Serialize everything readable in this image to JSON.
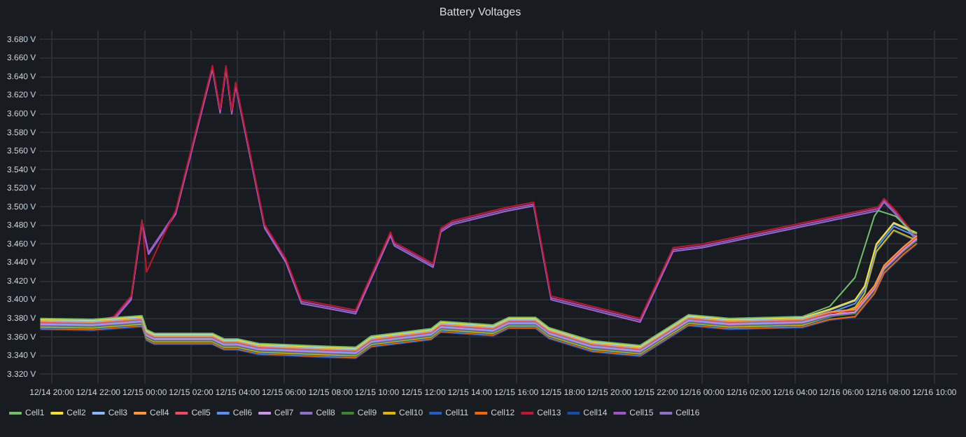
{
  "chart_data": {
    "type": "line",
    "title": "Battery Voltages",
    "legend": "bottom left",
    "grid": true,
    "xlim": [
      "--12-14T19:30",
      "--12-16T11:00"
    ],
    "xticks": [
      {
        "value": "--12-14T20:00",
        "label": "12/14 20:00"
      },
      {
        "value": "--12-14T22:00",
        "label": "12/14 22:00"
      },
      {
        "value": "--12-15T00:00",
        "label": "12/15 00:00"
      },
      {
        "value": "--12-15T02:00",
        "label": "12/15 02:00"
      },
      {
        "value": "--12-15T04:00",
        "label": "12/15 04:00"
      },
      {
        "value": "--12-15T06:00",
        "label": "12/15 06:00"
      },
      {
        "value": "--12-15T08:00",
        "label": "12/15 08:00"
      },
      {
        "value": "--12-15T10:00",
        "label": "12/15 10:00"
      },
      {
        "value": "--12-15T12:00",
        "label": "12/15 12:00"
      },
      {
        "value": "--12-15T14:00",
        "label": "12/15 14:00"
      },
      {
        "value": "--12-15T16:00",
        "label": "12/15 16:00"
      },
      {
        "value": "--12-15T18:00",
        "label": "12/15 18:00"
      },
      {
        "value": "--12-15T20:00",
        "label": "12/15 20:00"
      },
      {
        "value": "--12-15T22:00",
        "label": "12/15 22:00"
      },
      {
        "value": "--12-16T00:00",
        "label": "12/16 00:00"
      },
      {
        "value": "--12-16T02:00",
        "label": "12/16 02:00"
      },
      {
        "value": "--12-16T04:00",
        "label": "12/16 04:00"
      },
      {
        "value": "--12-16T06:00",
        "label": "12/16 06:00"
      },
      {
        "value": "--12-16T08:00",
        "label": "12/16 08:00"
      },
      {
        "value": "--12-16T10:00",
        "label": "12/16 10:00"
      }
    ],
    "ylim": [
      3.31,
      3.69
    ],
    "yticks": [
      {
        "value": 3.32,
        "label": "3.320 V"
      },
      {
        "value": 3.34,
        "label": "3.340 V"
      },
      {
        "value": 3.36,
        "label": "3.360 V"
      },
      {
        "value": 3.38,
        "label": "3.380 V"
      },
      {
        "value": 3.4,
        "label": "3.400 V"
      },
      {
        "value": 3.42,
        "label": "3.420 V"
      },
      {
        "value": 3.44,
        "label": "3.440 V"
      },
      {
        "value": 3.46,
        "label": "3.460 V"
      },
      {
        "value": 3.48,
        "label": "3.480 V"
      },
      {
        "value": 3.5,
        "label": "3.500 V"
      },
      {
        "value": 3.52,
        "label": "3.520 V"
      },
      {
        "value": 3.54,
        "label": "3.540 V"
      },
      {
        "value": 3.56,
        "label": "3.560 V"
      },
      {
        "value": 3.58,
        "label": "3.580 V"
      },
      {
        "value": 3.6,
        "label": "3.600 V"
      },
      {
        "value": 3.62,
        "label": "3.620 V"
      },
      {
        "value": 3.64,
        "label": "3.640 V"
      },
      {
        "value": 3.66,
        "label": "3.660 V"
      },
      {
        "value": 3.68,
        "label": "3.680 V"
      }
    ],
    "series": [
      {
        "name": "Cell1",
        "color": "#73bf69",
        "x": [
          "--12-14T19:30",
          "--12-14T21:45",
          "--12-14T23:53",
          "--12-15T00:05",
          "--12-15T00:25",
          "--12-15T02:55",
          "--12-15T03:25",
          "--12-15T04:00",
          "--12-15T04:55",
          "--12-15T07:50",
          "--12-15T09:05",
          "--12-15T09:45",
          "--12-15T12:20",
          "--12-15T12:45",
          "--12-15T15:00",
          "--12-15T15:40",
          "--12-15T16:50",
          "--12-15T17:25",
          "--12-15T19:15",
          "--12-15T21:20",
          "--12-15T23:25",
          "--12-16T01:10",
          "--12-16T04:20",
          "--12-16T05:30",
          "--12-16T06:35",
          "--12-16T07:25",
          "--12-16T07:35",
          "--12-16T08:20",
          "--12-16T09:05",
          "--12-16T09:15"
        ],
        "values": [
          3.38,
          3.379,
          3.383,
          3.368,
          3.364,
          3.364,
          3.358,
          3.358,
          3.353,
          3.35,
          3.349,
          3.361,
          3.369,
          3.377,
          3.373,
          3.381,
          3.381,
          3.37,
          3.356,
          3.351,
          3.384,
          3.38,
          3.382,
          3.393,
          3.424,
          3.49,
          3.496,
          3.49,
          3.472,
          3.472
        ]
      },
      {
        "name": "Cell2",
        "color": "#fade2a",
        "x": [
          "--12-14T19:30",
          "--12-14T21:45",
          "--12-14T23:53",
          "--12-15T00:05",
          "--12-15T00:25",
          "--12-15T02:55",
          "--12-15T03:25",
          "--12-15T04:00",
          "--12-15T04:55",
          "--12-15T07:50",
          "--12-15T09:05",
          "--12-15T09:45",
          "--12-15T12:20",
          "--12-15T12:45",
          "--12-15T15:00",
          "--12-15T15:40",
          "--12-15T16:50",
          "--12-15T17:25",
          "--12-15T19:15",
          "--12-15T21:20",
          "--12-15T23:25",
          "--12-16T01:10",
          "--12-16T04:20",
          "--12-16T05:30",
          "--12-16T06:35",
          "--12-16T07:00",
          "--12-16T07:30",
          "--12-16T08:15",
          "--12-16T09:15"
        ],
        "values": [
          3.379,
          3.378,
          3.382,
          3.367,
          3.363,
          3.363,
          3.357,
          3.357,
          3.352,
          3.349,
          3.348,
          3.36,
          3.368,
          3.376,
          3.372,
          3.38,
          3.38,
          3.369,
          3.355,
          3.35,
          3.383,
          3.379,
          3.381,
          3.39,
          3.4,
          3.415,
          3.46,
          3.483,
          3.472
        ]
      },
      {
        "name": "Cell3",
        "color": "#8ab8ff",
        "x": [
          "--12-14T19:30",
          "--12-14T21:45",
          "--12-14T23:53",
          "--12-15T00:05",
          "--12-15T00:25",
          "--12-15T02:55",
          "--12-15T03:25",
          "--12-15T04:00",
          "--12-15T04:55",
          "--12-15T07:50",
          "--12-15T09:05",
          "--12-15T09:45",
          "--12-15T12:20",
          "--12-15T12:45",
          "--12-15T15:00",
          "--12-15T15:40",
          "--12-15T16:50",
          "--12-15T17:25",
          "--12-15T19:15",
          "--12-15T21:20",
          "--12-15T23:25",
          "--12-16T01:10",
          "--12-16T04:20",
          "--12-16T05:30",
          "--12-16T06:35",
          "--12-16T07:00",
          "--12-16T07:30",
          "--12-16T08:15",
          "--12-16T09:15"
        ],
        "values": [
          3.378,
          3.377,
          3.381,
          3.366,
          3.362,
          3.362,
          3.356,
          3.356,
          3.351,
          3.348,
          3.347,
          3.359,
          3.367,
          3.375,
          3.371,
          3.379,
          3.379,
          3.368,
          3.354,
          3.349,
          3.382,
          3.378,
          3.38,
          3.389,
          3.399,
          3.414,
          3.459,
          3.482,
          3.471
        ]
      },
      {
        "name": "Cell4",
        "color": "#ff9830",
        "x": [
          "--12-14T19:30",
          "--12-14T21:45",
          "--12-14T23:53",
          "--12-15T00:05",
          "--12-15T00:25",
          "--12-15T02:55",
          "--12-15T03:25",
          "--12-15T04:00",
          "--12-15T04:55",
          "--12-15T07:50",
          "--12-15T09:05",
          "--12-15T09:45",
          "--12-15T12:20",
          "--12-15T12:45",
          "--12-15T15:00",
          "--12-15T15:40",
          "--12-15T16:50",
          "--12-15T17:25",
          "--12-15T19:15",
          "--12-15T21:20",
          "--12-15T23:25",
          "--12-16T01:10",
          "--12-16T04:20",
          "--12-16T05:30",
          "--12-16T06:35",
          "--12-16T07:25",
          "--12-16T07:50",
          "--12-16T08:40",
          "--12-16T09:15"
        ],
        "values": [
          3.377,
          3.376,
          3.38,
          3.365,
          3.361,
          3.361,
          3.355,
          3.355,
          3.35,
          3.347,
          3.346,
          3.358,
          3.366,
          3.374,
          3.37,
          3.378,
          3.378,
          3.367,
          3.353,
          3.348,
          3.381,
          3.377,
          3.379,
          3.387,
          3.39,
          3.415,
          3.437,
          3.457,
          3.469
        ]
      },
      {
        "name": "Cell5",
        "color": "#f2495c",
        "x": [
          "--12-14T19:30",
          "--12-14T21:45",
          "--12-14T23:53",
          "--12-15T00:05",
          "--12-15T00:25",
          "--12-15T02:55",
          "--12-15T03:25",
          "--12-15T04:00",
          "--12-15T04:55",
          "--12-15T07:50",
          "--12-15T09:05",
          "--12-15T09:45",
          "--12-15T12:20",
          "--12-15T12:45",
          "--12-15T15:00",
          "--12-15T15:40",
          "--12-15T16:50",
          "--12-15T17:25",
          "--12-15T19:15",
          "--12-15T21:20",
          "--12-15T23:25",
          "--12-16T01:10",
          "--12-16T04:20",
          "--12-16T05:30",
          "--12-16T06:35",
          "--12-16T07:25",
          "--12-16T07:50",
          "--12-16T08:40",
          "--12-16T09:15"
        ],
        "values": [
          3.376,
          3.375,
          3.379,
          3.364,
          3.36,
          3.36,
          3.354,
          3.354,
          3.349,
          3.346,
          3.345,
          3.357,
          3.365,
          3.373,
          3.369,
          3.377,
          3.377,
          3.366,
          3.352,
          3.347,
          3.38,
          3.376,
          3.378,
          3.386,
          3.389,
          3.414,
          3.436,
          3.456,
          3.468
        ]
      },
      {
        "name": "Cell6",
        "color": "#5794f2",
        "x": [
          "--12-14T19:30",
          "--12-14T21:45",
          "--12-14T23:53",
          "--12-15T00:05",
          "--12-15T00:25",
          "--12-15T02:55",
          "--12-15T03:25",
          "--12-15T04:00",
          "--12-15T04:55",
          "--12-15T07:50",
          "--12-15T09:05",
          "--12-15T09:45",
          "--12-15T12:20",
          "--12-15T12:45",
          "--12-15T15:00",
          "--12-15T15:40",
          "--12-15T16:50",
          "--12-15T17:25",
          "--12-15T19:15",
          "--12-15T21:20",
          "--12-15T23:25",
          "--12-16T01:10",
          "--12-16T04:20",
          "--12-16T05:30",
          "--12-16T06:35",
          "--12-16T07:00",
          "--12-16T07:30",
          "--12-16T08:15",
          "--12-16T09:15"
        ],
        "values": [
          3.375,
          3.374,
          3.378,
          3.363,
          3.359,
          3.359,
          3.353,
          3.353,
          3.348,
          3.345,
          3.344,
          3.356,
          3.364,
          3.372,
          3.368,
          3.376,
          3.376,
          3.365,
          3.351,
          3.346,
          3.379,
          3.375,
          3.377,
          3.386,
          3.396,
          3.411,
          3.456,
          3.479,
          3.468
        ]
      },
      {
        "name": "Cell7",
        "color": "#ca95e5",
        "x": [
          "--12-14T19:30",
          "--12-14T21:45",
          "--12-14T23:53",
          "--12-15T00:05",
          "--12-15T00:25",
          "--12-15T02:55",
          "--12-15T03:25",
          "--12-15T04:00",
          "--12-15T04:55",
          "--12-15T07:50",
          "--12-15T09:05",
          "--12-15T09:45",
          "--12-15T12:20",
          "--12-15T12:45",
          "--12-15T15:00",
          "--12-15T15:40",
          "--12-15T16:50",
          "--12-15T17:25",
          "--12-15T19:15",
          "--12-15T21:20",
          "--12-15T23:25",
          "--12-16T01:10",
          "--12-16T04:20",
          "--12-16T05:30",
          "--12-16T06:35",
          "--12-16T07:25",
          "--12-16T07:50",
          "--12-16T08:40",
          "--12-16T09:15"
        ],
        "values": [
          3.374,
          3.373,
          3.377,
          3.362,
          3.358,
          3.358,
          3.352,
          3.352,
          3.347,
          3.344,
          3.343,
          3.355,
          3.363,
          3.371,
          3.367,
          3.375,
          3.375,
          3.364,
          3.35,
          3.345,
          3.378,
          3.374,
          3.376,
          3.384,
          3.387,
          3.412,
          3.434,
          3.454,
          3.466
        ]
      },
      {
        "name": "Cell8",
        "color": "#8f6fc9",
        "x": [
          "--12-14T19:30",
          "--12-14T21:45",
          "--12-14T23:53",
          "--12-15T00:05",
          "--12-15T00:25",
          "--12-15T02:55",
          "--12-15T03:25",
          "--12-15T04:00",
          "--12-15T04:55",
          "--12-15T07:50",
          "--12-15T09:05",
          "--12-15T09:45",
          "--12-15T12:20",
          "--12-15T12:45",
          "--12-15T15:00",
          "--12-15T15:40",
          "--12-15T16:50",
          "--12-15T17:25",
          "--12-15T19:15",
          "--12-15T21:20",
          "--12-15T23:25",
          "--12-16T01:10",
          "--12-16T04:20",
          "--12-16T05:30",
          "--12-16T06:35",
          "--12-16T07:25",
          "--12-16T07:50",
          "--12-16T08:40",
          "--12-16T09:15"
        ],
        "values": [
          3.373,
          3.372,
          3.376,
          3.361,
          3.357,
          3.357,
          3.351,
          3.351,
          3.346,
          3.343,
          3.342,
          3.354,
          3.362,
          3.37,
          3.366,
          3.374,
          3.374,
          3.363,
          3.349,
          3.344,
          3.377,
          3.373,
          3.375,
          3.383,
          3.386,
          3.411,
          3.433,
          3.453,
          3.465
        ]
      },
      {
        "name": "Cell9",
        "color": "#37872d",
        "x": [
          "--12-14T19:30",
          "--12-14T21:45",
          "--12-14T23:53",
          "--12-15T00:05",
          "--12-15T00:25",
          "--12-15T02:55",
          "--12-15T03:25",
          "--12-15T04:00",
          "--12-15T04:55",
          "--12-15T07:50",
          "--12-15T09:05",
          "--12-15T09:45",
          "--12-15T12:20",
          "--12-15T12:45",
          "--12-15T15:00",
          "--12-15T15:40",
          "--12-15T16:50",
          "--12-15T17:25",
          "--12-15T19:15",
          "--12-15T21:20",
          "--12-15T23:25",
          "--12-16T01:10",
          "--12-16T04:20",
          "--12-16T05:30",
          "--12-16T06:35",
          "--12-16T07:25",
          "--12-16T07:50",
          "--12-16T08:40",
          "--12-16T09:15"
        ],
        "values": [
          3.372,
          3.371,
          3.375,
          3.36,
          3.356,
          3.356,
          3.35,
          3.35,
          3.345,
          3.342,
          3.341,
          3.353,
          3.361,
          3.369,
          3.365,
          3.373,
          3.373,
          3.362,
          3.348,
          3.343,
          3.376,
          3.372,
          3.374,
          3.382,
          3.385,
          3.41,
          3.432,
          3.452,
          3.464
        ]
      },
      {
        "name": "Cell10",
        "color": "#e0b400",
        "x": [
          "--12-14T19:30",
          "--12-14T21:45",
          "--12-14T23:53",
          "--12-15T00:05",
          "--12-15T00:25",
          "--12-15T02:55",
          "--12-15T03:25",
          "--12-15T04:00",
          "--12-15T04:55",
          "--12-15T07:50",
          "--12-15T09:05",
          "--12-15T09:45",
          "--12-15T12:20",
          "--12-15T12:45",
          "--12-15T15:00",
          "--12-15T15:40",
          "--12-15T16:50",
          "--12-15T17:25",
          "--12-15T19:15",
          "--12-15T21:20",
          "--12-15T23:25",
          "--12-16T01:10",
          "--12-16T04:20",
          "--12-16T05:30",
          "--12-16T06:35",
          "--12-16T07:00",
          "--12-16T07:30",
          "--12-16T08:15",
          "--12-16T09:15"
        ],
        "values": [
          3.371,
          3.37,
          3.374,
          3.359,
          3.355,
          3.355,
          3.349,
          3.349,
          3.344,
          3.341,
          3.34,
          3.352,
          3.36,
          3.368,
          3.364,
          3.372,
          3.372,
          3.361,
          3.347,
          3.342,
          3.375,
          3.371,
          3.373,
          3.382,
          3.392,
          3.407,
          3.452,
          3.475,
          3.464
        ]
      },
      {
        "name": "Cell11",
        "color": "#1f60c4",
        "x": [
          "--12-14T19:30",
          "--12-14T21:45",
          "--12-14T23:53",
          "--12-15T00:05",
          "--12-15T00:25",
          "--12-15T02:55",
          "--12-15T03:25",
          "--12-15T04:00",
          "--12-15T04:55",
          "--12-15T07:50",
          "--12-15T09:05",
          "--12-15T09:45",
          "--12-15T12:20",
          "--12-15T12:45",
          "--12-15T15:00",
          "--12-15T15:40",
          "--12-15T16:50",
          "--12-15T17:25",
          "--12-15T19:15",
          "--12-15T21:20",
          "--12-15T23:25",
          "--12-16T01:10",
          "--12-16T04:20",
          "--12-16T05:30",
          "--12-16T06:35",
          "--12-16T07:00",
          "--12-16T07:30",
          "--12-16T08:15",
          "--12-16T09:15"
        ],
        "values": [
          3.37,
          3.369,
          3.373,
          3.358,
          3.354,
          3.354,
          3.348,
          3.348,
          3.343,
          3.34,
          3.339,
          3.351,
          3.359,
          3.367,
          3.363,
          3.371,
          3.371,
          3.36,
          3.346,
          3.341,
          3.374,
          3.37,
          3.372,
          3.381,
          3.391,
          3.406,
          3.451,
          3.474,
          3.463
        ]
      },
      {
        "name": "Cell12",
        "color": "#fa6400",
        "x": [
          "--12-14T19:30",
          "--12-14T21:45",
          "--12-14T23:53",
          "--12-15T00:05",
          "--12-15T00:25",
          "--12-15T02:55",
          "--12-15T03:25",
          "--12-15T04:00",
          "--12-15T04:55",
          "--12-15T07:50",
          "--12-15T09:05",
          "--12-15T09:45",
          "--12-15T12:20",
          "--12-15T12:45",
          "--12-15T15:00",
          "--12-15T15:40",
          "--12-15T16:50",
          "--12-15T17:25",
          "--12-15T19:15",
          "--12-15T21:20",
          "--12-15T23:25",
          "--12-16T01:10",
          "--12-16T04:20",
          "--12-16T05:30",
          "--12-16T06:35",
          "--12-16T07:25",
          "--12-16T07:50",
          "--12-16T08:40",
          "--12-16T09:15"
        ],
        "values": [
          3.369,
          3.368,
          3.372,
          3.357,
          3.353,
          3.353,
          3.347,
          3.347,
          3.342,
          3.339,
          3.338,
          3.35,
          3.358,
          3.366,
          3.362,
          3.37,
          3.37,
          3.359,
          3.345,
          3.34,
          3.373,
          3.369,
          3.371,
          3.379,
          3.382,
          3.407,
          3.429,
          3.449,
          3.461
        ]
      },
      {
        "name": "Cell13",
        "color": "#c4162a",
        "x": [
          "--12-14T19:30",
          "--12-14T21:45",
          "--12-14T22:40",
          "--12-14T23:25",
          "--12-14T23:53",
          "--12-15T00:05",
          "--12-15T00:40",
          "--12-15T01:20",
          "--12-15T02:55",
          "--12-15T03:15",
          "--12-15T03:30",
          "--12-15T03:45",
          "--12-15T03:55",
          "--12-15T05:10",
          "--12-15T06:05",
          "--12-15T06:45",
          "--12-15T09:05",
          "--12-15T10:35",
          "--12-15T10:45",
          "--12-15T12:25",
          "--12-15T12:45",
          "--12-15T13:15",
          "--12-15T15:30",
          "--12-15T16:45",
          "--12-15T17:30",
          "--12-15T21:20",
          "--12-15T22:45",
          "--12-16T00:00",
          "--12-16T07:35",
          "--12-16T07:50",
          "--12-16T08:20",
          "--12-16T09:05",
          "--12-16T09:15"
        ],
        "values": [
          3.374,
          3.376,
          3.382,
          3.404,
          3.486,
          3.43,
          3.462,
          3.496,
          3.652,
          3.605,
          3.652,
          3.604,
          3.634,
          3.481,
          3.444,
          3.4,
          3.389,
          3.473,
          3.462,
          3.439,
          3.477,
          3.485,
          3.499,
          3.505,
          3.404,
          3.38,
          3.456,
          3.46,
          3.5,
          3.509,
          3.496,
          3.472,
          3.469
        ]
      },
      {
        "name": "Cell14",
        "color": "#1250b0",
        "x": [
          "--12-14T19:30",
          "--12-14T21:45",
          "--12-14T23:53",
          "--12-15T00:05",
          "--12-15T00:25",
          "--12-15T02:55",
          "--12-15T03:25",
          "--12-15T04:00",
          "--12-15T04:55",
          "--12-15T07:50",
          "--12-15T09:05",
          "--12-15T09:45",
          "--12-15T12:20",
          "--12-15T12:45",
          "--12-15T15:00",
          "--12-15T15:40",
          "--12-15T16:50",
          "--12-15T17:25",
          "--12-15T19:15",
          "--12-15T21:20",
          "--12-15T23:25",
          "--12-16T01:10",
          "--12-16T04:20",
          "--12-16T05:30",
          "--12-16T06:35",
          "--12-16T07:25",
          "--12-16T07:50",
          "--12-16T08:40",
          "--12-16T09:15"
        ],
        "values": [
          3.368,
          3.367,
          3.371,
          3.356,
          3.352,
          3.352,
          3.346,
          3.346,
          3.341,
          3.338,
          3.337,
          3.349,
          3.357,
          3.365,
          3.361,
          3.369,
          3.369,
          3.358,
          3.344,
          3.339,
          3.372,
          3.368,
          3.37,
          3.378,
          3.381,
          3.406,
          3.428,
          3.448,
          3.46
        ]
      },
      {
        "name": "Cell15",
        "color": "#a352cc",
        "x": [
          "--12-14T19:30",
          "--12-14T21:45",
          "--12-14T22:40",
          "--12-14T23:25",
          "--12-14T23:53",
          "--12-15T00:10",
          "--12-15T01:20",
          "--12-15T02:55",
          "--12-15T03:15",
          "--12-15T03:30",
          "--12-15T03:45",
          "--12-15T03:55",
          "--12-15T05:10",
          "--12-15T06:05",
          "--12-15T06:45",
          "--12-15T09:05",
          "--12-15T10:35",
          "--12-15T10:45",
          "--12-15T12:25",
          "--12-15T12:45",
          "--12-15T13:15",
          "--12-15T15:30",
          "--12-15T16:45",
          "--12-15T17:30",
          "--12-15T21:20",
          "--12-15T22:45",
          "--12-16T00:00",
          "--12-16T07:35",
          "--12-16T07:50",
          "--12-16T08:20",
          "--12-16T09:05",
          "--12-16T09:15"
        ],
        "values": [
          3.372,
          3.374,
          3.38,
          3.402,
          3.484,
          3.451,
          3.494,
          3.65,
          3.603,
          3.65,
          3.602,
          3.632,
          3.479,
          3.442,
          3.398,
          3.387,
          3.471,
          3.46,
          3.437,
          3.475,
          3.483,
          3.497,
          3.503,
          3.402,
          3.378,
          3.454,
          3.458,
          3.498,
          3.507,
          3.494,
          3.47,
          3.467
        ]
      },
      {
        "name": "Cell16",
        "color": "#8f6fc9",
        "x": [
          "--12-14T19:30",
          "--12-14T21:45",
          "--12-14T22:40",
          "--12-14T23:25",
          "--12-14T23:53",
          "--12-15T00:10",
          "--12-15T01:20",
          "--12-15T02:55",
          "--12-15T03:15",
          "--12-15T03:30",
          "--12-15T03:45",
          "--12-15T03:55",
          "--12-15T05:10",
          "--12-15T06:05",
          "--12-15T06:45",
          "--12-15T09:05",
          "--12-15T10:35",
          "--12-15T10:45",
          "--12-15T12:25",
          "--12-15T12:45",
          "--12-15T13:15",
          "--12-15T15:30",
          "--12-15T16:45",
          "--12-15T17:30",
          "--12-15T21:20",
          "--12-15T22:45",
          "--12-16T00:00",
          "--12-16T07:35",
          "--12-16T07:50",
          "--12-16T08:20",
          "--12-16T09:05",
          "--12-16T09:15"
        ],
        "values": [
          3.37,
          3.372,
          3.378,
          3.4,
          3.482,
          3.449,
          3.492,
          3.648,
          3.601,
          3.648,
          3.6,
          3.63,
          3.477,
          3.44,
          3.396,
          3.385,
          3.469,
          3.458,
          3.435,
          3.473,
          3.481,
          3.495,
          3.501,
          3.4,
          3.376,
          3.452,
          3.456,
          3.496,
          3.505,
          3.492,
          3.468,
          3.465
        ]
      }
    ]
  }
}
